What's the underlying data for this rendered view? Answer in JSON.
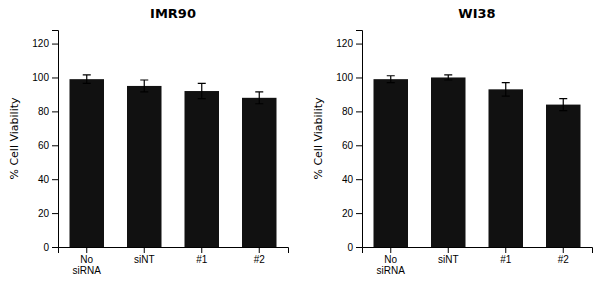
{
  "chart_data": [
    {
      "type": "bar",
      "title": "IMR90",
      "categories": [
        "No\nsiRNA",
        "siNT",
        "#1",
        "#2"
      ],
      "values": [
        99,
        95,
        92,
        88
      ],
      "errors": [
        2.5,
        3.5,
        4.5,
        3.5
      ],
      "color": "#111111",
      "ylabel": "% Cell Viability",
      "ylim": [
        0,
        128
      ],
      "yticks": [
        0,
        20,
        40,
        60,
        80,
        100,
        120
      ]
    },
    {
      "type": "bar",
      "title": "WI38",
      "categories": [
        "No\nsiRNA",
        "siNT",
        "#1",
        "#2"
      ],
      "values": [
        99,
        100,
        93,
        84
      ],
      "errors": [
        2.0,
        1.5,
        4.0,
        3.5
      ],
      "color": "#111111",
      "ylabel": "% Cell Viability",
      "ylim": [
        0,
        128
      ],
      "yticks": [
        0,
        20,
        40,
        60,
        80,
        100,
        120
      ]
    }
  ]
}
